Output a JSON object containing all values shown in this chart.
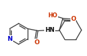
{
  "bg_color": "#ffffff",
  "bond_color": "#3a3a3a",
  "text_color": "#000000",
  "atom_colors": {
    "N": "#0000cc",
    "O": "#cc3300"
  },
  "figsize": [
    1.26,
    0.81
  ],
  "dpi": 100,
  "xlim": [
    0,
    126
  ],
  "ylim": [
    81,
    0
  ]
}
